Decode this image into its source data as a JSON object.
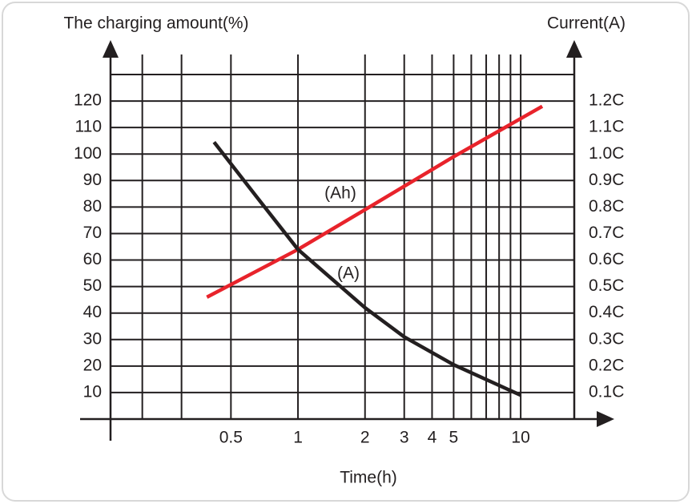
{
  "chart_data": {
    "type": "line",
    "y_axis_title": "The charging amount(%)",
    "y2_axis_title": "Current(A)",
    "x_axis_title": "Time(h)",
    "x_log_scale": true,
    "xlim": [
      0.144,
      17.4
    ],
    "xticks": [
      0.5,
      1,
      2,
      3,
      4,
      5,
      10
    ],
    "xgrid": [
      0.2,
      0.3,
      0.5,
      1,
      2,
      3,
      4,
      5,
      6,
      7,
      8,
      9,
      10
    ],
    "ylim": [
      0,
      130
    ],
    "yticks": [
      10,
      20,
      30,
      40,
      50,
      60,
      70,
      80,
      90,
      100,
      110,
      120
    ],
    "y2lim": [
      0,
      1.3
    ],
    "y2ticks": [
      {
        "value": 0.1,
        "label": "0.1C"
      },
      {
        "value": 0.2,
        "label": "0.2C"
      },
      {
        "value": 0.3,
        "label": "0.3C"
      },
      {
        "value": 0.4,
        "label": "0.4C"
      },
      {
        "value": 0.5,
        "label": "0.5C"
      },
      {
        "value": 0.6,
        "label": "0.6C"
      },
      {
        "value": 0.7,
        "label": "0.7C"
      },
      {
        "value": 0.8,
        "label": "0.8C"
      },
      {
        "value": 0.9,
        "label": "0.9C"
      },
      {
        "value": 1.0,
        "label": "1.0C"
      },
      {
        "value": 1.1,
        "label": "1.1C"
      },
      {
        "value": 1.2,
        "label": "1.2C"
      }
    ],
    "grid": true,
    "series": [
      {
        "name": "(Ah)",
        "color": "#e8232b",
        "axis": "y",
        "x": [
          0.39,
          1,
          2,
          5,
          12.5
        ],
        "values": [
          46,
          64,
          79,
          99,
          118
        ]
      },
      {
        "name": "(A)",
        "color": "#231f20",
        "axis": "y2",
        "x": [
          0.42,
          0.65,
          1,
          2,
          3,
          5,
          10
        ],
        "values": [
          1.045,
          0.84,
          0.64,
          0.42,
          0.31,
          0.205,
          0.09
        ]
      }
    ]
  }
}
